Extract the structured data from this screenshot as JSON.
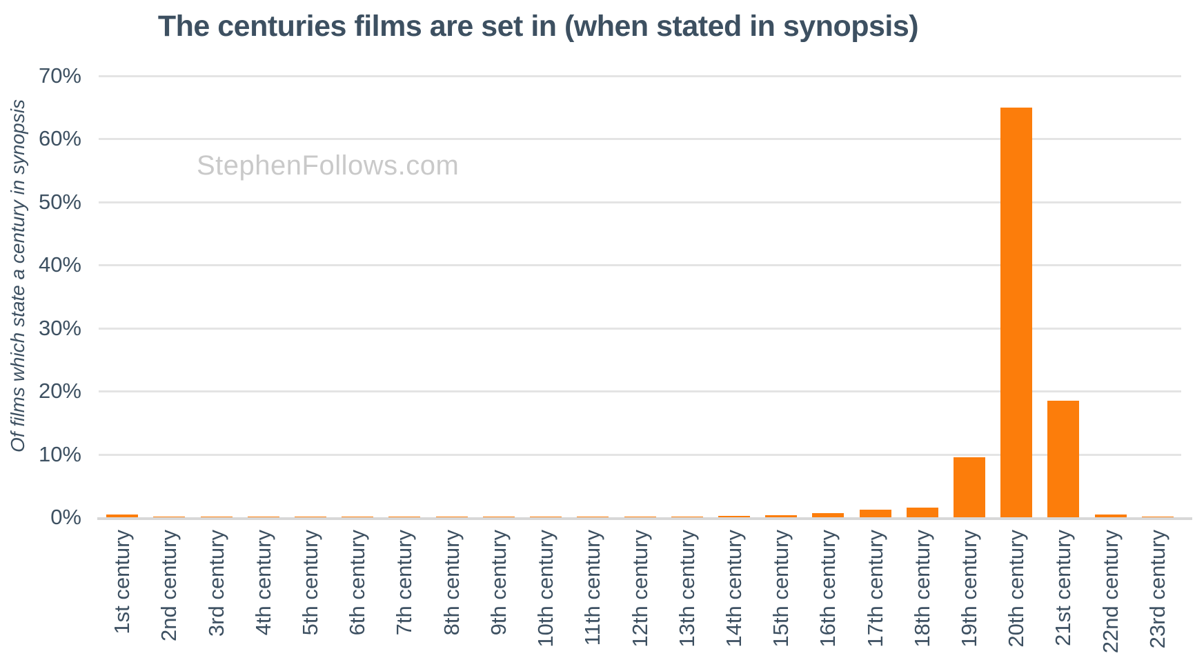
{
  "title": "The centuries films are set in (when stated in synopsis)",
  "watermark": "StephenFollows.com",
  "colors": {
    "bar": "#fc7d0b",
    "text": "#3d5061",
    "gridline": "#e4e4e4",
    "baseline": "#d8d8d8",
    "watermark": "#c9c9c9",
    "background": "#ffffff"
  },
  "chart_data": {
    "type": "bar",
    "title": "The centuries films are set in (when stated in synopsis)",
    "xlabel": "",
    "ylabel": "Of films which state a century in synopsis",
    "ylim": [
      0,
      70
    ],
    "ytick_labels": [
      "0%",
      "10%",
      "20%",
      "30%",
      "40%",
      "50%",
      "60%",
      "70%"
    ],
    "ytick_values": [
      0,
      10,
      20,
      30,
      40,
      50,
      60,
      70
    ],
    "grid": "horizontal",
    "legend": "none",
    "bar_color": "#fc7d0b",
    "categories": [
      "1st century",
      "2nd century",
      "3rd century",
      "4th century",
      "5th century",
      "6th century",
      "7th century",
      "8th century",
      "9th century",
      "10th century",
      "11th century",
      "12th century",
      "13th century",
      "14th century",
      "15th century",
      "16th century",
      "17th century",
      "18th century",
      "19th century",
      "20th century",
      "21st century",
      "22nd century",
      "23rd century"
    ],
    "values": [
      0.4,
      0.15,
      0.1,
      0.1,
      0.1,
      0.1,
      0.15,
      0.15,
      0.15,
      0.15,
      0.15,
      0.15,
      0.15,
      0.2,
      0.3,
      0.7,
      1.2,
      1.5,
      9.5,
      65,
      18.5,
      0.4,
      0.15
    ]
  }
}
